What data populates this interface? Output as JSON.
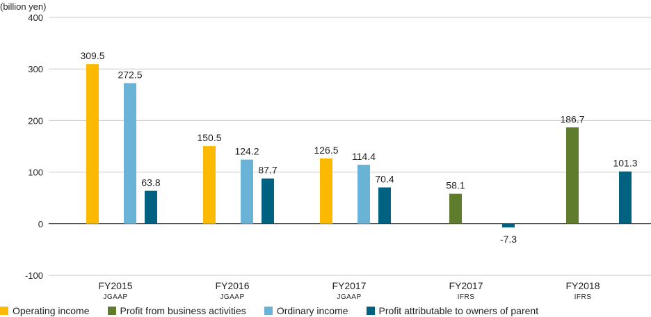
{
  "chart_data": {
    "type": "bar",
    "unit_label": "(billion yen)",
    "ylim": [
      -100,
      400
    ],
    "yticks": [
      400,
      300,
      200,
      100,
      0,
      -100
    ],
    "grid": true,
    "legend_position": "bottom",
    "categories": [
      {
        "label": "FY2015",
        "sublabel": "JGAAP"
      },
      {
        "label": "FY2016",
        "sublabel": "JGAAP"
      },
      {
        "label": "FY2017",
        "sublabel": "JGAAP"
      },
      {
        "label": "FY2017",
        "sublabel": "IFRS"
      },
      {
        "label": "FY2018",
        "sublabel": "IFRS"
      }
    ],
    "series": [
      {
        "name": "Operating income",
        "color": "#fbb900",
        "values": [
          309.5,
          150.5,
          126.5,
          null,
          null
        ],
        "labels": [
          "309.5",
          "150.5",
          "126.5",
          null,
          null
        ]
      },
      {
        "name": "Profit from business activities",
        "color": "#5e7c2b",
        "values": [
          null,
          null,
          null,
          58.1,
          186.7
        ],
        "labels": [
          null,
          null,
          null,
          "58.1",
          "186.7"
        ]
      },
      {
        "name": "Ordinary income",
        "color": "#6ab2d6",
        "values": [
          272.5,
          124.2,
          114.4,
          null,
          null
        ],
        "labels": [
          "272.5",
          "124.2",
          "114.4",
          null,
          null
        ]
      },
      {
        "name": "Profit attributable to owners of parent",
        "color": "#006181",
        "values": [
          63.8,
          87.7,
          70.4,
          -7.3,
          101.3
        ],
        "labels": [
          "63.8",
          "87.7",
          "70.4",
          "-7.3",
          "101.3"
        ]
      }
    ]
  }
}
